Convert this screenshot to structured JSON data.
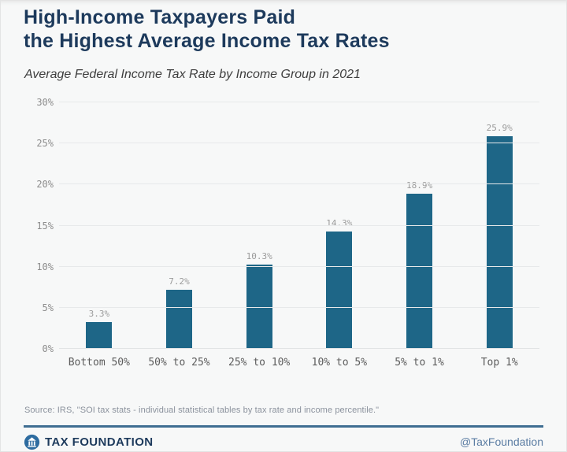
{
  "header": {
    "title": "High-Income Taxpayers Paid\nthe Highest Average Income Tax Rates",
    "subtitle": "Average Federal Income Tax Rate by Income Group in 2021"
  },
  "chart_data": {
    "type": "bar",
    "title": "High-Income Taxpayers Paid the Highest Average Income Tax Rates",
    "subtitle": "Average Federal Income Tax Rate by Income Group in 2021",
    "categories": [
      "Bottom 50%",
      "50% to 25%",
      "25% to 10%",
      "10% to 5%",
      "5% to 1%",
      "Top 1%"
    ],
    "values": [
      3.3,
      7.2,
      10.3,
      14.3,
      18.9,
      25.9
    ],
    "value_labels": [
      "3.3%",
      "7.2%",
      "10.3%",
      "14.3%",
      "18.9%",
      "25.9%"
    ],
    "yticks": [
      0,
      5,
      10,
      15,
      20,
      25,
      30
    ],
    "ytick_labels": [
      "0%",
      "5%",
      "10%",
      "15%",
      "20%",
      "25%",
      "30%"
    ],
    "ylim": [
      0,
      30
    ],
    "grid": true,
    "legend": "none",
    "xlabel": "",
    "ylabel": "",
    "bar_color": "#1e6687"
  },
  "source": {
    "text": "Source: IRS, \"SOI tax stats - individual statistical tables by tax rate and income percentile.\""
  },
  "footer": {
    "brand": "TAX FOUNDATION",
    "handle": "@TaxFoundation",
    "logo_icon": "tax-foundation-capitol-circle"
  },
  "colors": {
    "title_navy": "#1d3a5c",
    "bar_teal": "#1e6687",
    "divider_blue": "#3f6e92",
    "handle_blue": "#5b7da3",
    "axis_gray": "#8d8d8d",
    "background": "#f7f8f8"
  }
}
